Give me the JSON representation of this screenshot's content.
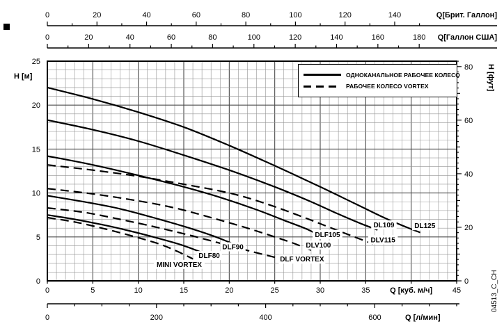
{
  "side_code": "04513_C_CH",
  "legend": {
    "items": [
      {
        "label": "ОДНОКАНАЛЬНОЕ РАБОЧЕЕ КОЛЕСО",
        "style": "solid"
      },
      {
        "label": "РАБОЧЕЕ КОЛЕСО VORTEX",
        "style": "dashed"
      }
    ]
  },
  "colors": {
    "curve": "#000000",
    "grid_minor": "#949494",
    "grid_major": "#4a4a4a",
    "frame": "#000000"
  },
  "chart_data": {
    "type": "line",
    "title": "",
    "x_range": [
      0,
      45
    ],
    "y_range": [
      0,
      25
    ],
    "grid": {
      "x_minor": 1,
      "x_major": 5,
      "y_minor": 1,
      "y_major": 5
    },
    "axes": {
      "left": {
        "label": "H [м]",
        "ticks": [
          0,
          5,
          10,
          15,
          20,
          25
        ]
      },
      "right": {
        "label": "H [фут]",
        "labeled_ticks": [
          0,
          20,
          40,
          60,
          80
        ],
        "minor_step": 2,
        "medium_step": 10,
        "max": 82,
        "ft_per_m": 3.2808
      },
      "bottom_primary": {
        "label": "Q [куб. м/ч]",
        "labeled_ticks": [
          0,
          5,
          10,
          15,
          20,
          25,
          30,
          35,
          45
        ],
        "major_step": 5,
        "unit_label_position": 40
      },
      "bottom_secondary": {
        "label": "Q [л/мин]",
        "labeled_ticks": [
          0,
          200,
          400,
          600
        ],
        "minor_step": 50,
        "max": 750,
        "m3h_per_unit": 0.06
      },
      "top_primary": {
        "label": "Q[Брит. Галлон]",
        "labeled_ticks": [
          0,
          20,
          40,
          60,
          80,
          100,
          120,
          140
        ],
        "minor_step": 10,
        "max": 150,
        "m3h_per_unit": 0.27276
      },
      "top_secondary": {
        "label": "Q[Галлон США]",
        "labeled_ticks": [
          0,
          20,
          40,
          60,
          80,
          100,
          120,
          140,
          160,
          180
        ],
        "minor_step": 10,
        "max": 180,
        "m3h_per_unit": 0.22712
      }
    },
    "series": [
      {
        "name": "DL125",
        "style": "solid",
        "impeller": "single-channel",
        "label_at": [
          41.5,
          6.0
        ],
        "points": [
          [
            0,
            22
          ],
          [
            5,
            20.7
          ],
          [
            10,
            19.2
          ],
          [
            15,
            17.5
          ],
          [
            20,
            15.4
          ],
          [
            25,
            13.1
          ],
          [
            30,
            10.7
          ],
          [
            34,
            8.7
          ],
          [
            37,
            7.2
          ],
          [
            39.5,
            6.1
          ],
          [
            41,
            5.5
          ]
        ]
      },
      {
        "name": "DL109",
        "style": "solid",
        "impeller": "single-channel",
        "label_at": [
          37.0,
          6.1
        ],
        "points": [
          [
            0,
            18.3
          ],
          [
            5,
            17.2
          ],
          [
            10,
            15.9
          ],
          [
            15,
            14.3
          ],
          [
            20,
            12.6
          ],
          [
            25,
            10.7
          ],
          [
            29,
            9.0
          ],
          [
            32,
            7.6
          ],
          [
            34.5,
            6.5
          ],
          [
            36.3,
            5.8
          ]
        ]
      },
      {
        "name": "DLF105",
        "style": "solid",
        "impeller": "single-channel",
        "label_at": [
          30.8,
          5.0
        ],
        "points": [
          [
            0,
            14.2
          ],
          [
            5,
            13.2
          ],
          [
            10,
            12.0
          ],
          [
            15,
            10.7
          ],
          [
            19,
            9.5
          ],
          [
            23,
            8.1
          ],
          [
            26,
            6.9
          ],
          [
            28.5,
            5.9
          ],
          [
            30,
            5.1
          ]
        ]
      },
      {
        "name": "DLF90",
        "style": "solid",
        "impeller": "single-channel",
        "label_at": [
          20.4,
          3.6
        ],
        "points": [
          [
            0,
            9.7
          ],
          [
            4,
            9.0
          ],
          [
            8,
            8.2
          ],
          [
            12,
            7.1
          ],
          [
            15,
            6.2
          ],
          [
            18,
            5.2
          ],
          [
            20,
            4.4
          ],
          [
            21.5,
            3.8
          ]
        ]
      },
      {
        "name": "DLF80",
        "style": "solid",
        "impeller": "single-channel",
        "label_at": [
          17.8,
          2.6
        ],
        "points": [
          [
            0,
            7.5
          ],
          [
            3,
            7.0
          ],
          [
            6,
            6.4
          ],
          [
            9,
            5.7
          ],
          [
            12,
            4.9
          ],
          [
            15,
            4.0
          ],
          [
            17.8,
            2.9
          ]
        ]
      },
      {
        "name": "DLV115",
        "style": "dashed",
        "impeller": "vortex",
        "label_at": [
          36.9,
          4.4
        ],
        "points": [
          [
            0,
            13.2
          ],
          [
            5,
            12.6
          ],
          [
            10,
            11.9
          ],
          [
            15,
            11.0
          ],
          [
            20,
            10.0
          ],
          [
            24,
            8.8
          ],
          [
            28,
            7.3
          ],
          [
            31,
            6.1
          ],
          [
            33.5,
            5.1
          ],
          [
            35.8,
            4.2
          ]
        ]
      },
      {
        "name": "DLV100",
        "style": "dashed",
        "impeller": "vortex",
        "label_at": [
          29.8,
          3.8
        ],
        "points": [
          [
            0,
            10.5
          ],
          [
            5,
            9.9
          ],
          [
            10,
            9.1
          ],
          [
            14,
            8.3
          ],
          [
            18,
            7.2
          ],
          [
            22,
            6.0
          ],
          [
            25,
            5.0
          ],
          [
            27,
            4.3
          ],
          [
            29,
            3.5
          ]
        ]
      },
      {
        "name": "DLF VORTEX",
        "style": "dashed",
        "impeller": "vortex",
        "label_at": [
          28.0,
          2.2
        ],
        "points": [
          [
            0,
            8.3
          ],
          [
            4,
            7.8
          ],
          [
            8,
            7.0
          ],
          [
            12,
            6.1
          ],
          [
            16,
            5.1
          ],
          [
            20,
            4.0
          ],
          [
            23,
            3.2
          ],
          [
            26.5,
            2.3
          ]
        ]
      },
      {
        "name": "MINI VORTEX",
        "style": "dashed",
        "impeller": "vortex",
        "label_at": [
          14.5,
          1.6
        ],
        "points": [
          [
            0,
            7.2
          ],
          [
            3,
            6.7
          ],
          [
            6,
            6.0
          ],
          [
            9,
            5.2
          ],
          [
            12,
            4.3
          ],
          [
            14,
            3.5
          ],
          [
            16,
            2.5
          ]
        ]
      }
    ]
  }
}
